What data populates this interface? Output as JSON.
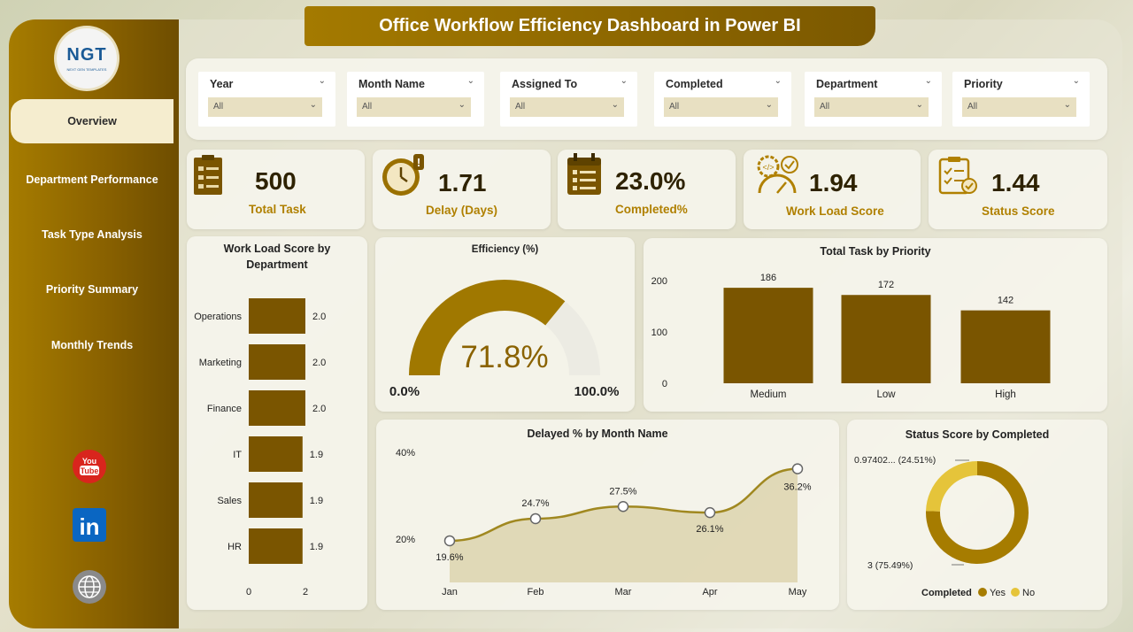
{
  "title": "Office Workflow Efficiency Dashboard in Power BI",
  "logo": {
    "text": "NGT",
    "subtext": "NEXT GEN TEMPLATES"
  },
  "nav": [
    "Overview",
    "Department Performance",
    "Task Type Analysis",
    "Priority Summary",
    "Monthly Trends"
  ],
  "social": [
    {
      "name": "youtube",
      "label": "You Tube",
      "color": "#d9251d"
    },
    {
      "name": "linkedin",
      "label": "in",
      "color": "#0a66c2"
    },
    {
      "name": "globe",
      "label": "",
      "color": "#777777"
    }
  ],
  "filters": [
    {
      "label": "Year",
      "value": "All"
    },
    {
      "label": "Month Name",
      "value": "All"
    },
    {
      "label": "Assigned To",
      "value": "All"
    },
    {
      "label": "Completed",
      "value": "All"
    },
    {
      "label": "Department",
      "value": "All"
    },
    {
      "label": "Priority",
      "value": "All"
    }
  ],
  "kpis": [
    {
      "value": "500",
      "label": "Total Task",
      "icon": "checklist-icon"
    },
    {
      "value": "1.71",
      "label": "Delay (Days)",
      "icon": "clock-alert-icon"
    },
    {
      "value": "23.0%",
      "label": "Completed%",
      "icon": "calendar-list-icon"
    },
    {
      "value": "1.94",
      "label": "Work Load Score",
      "icon": "gauge-gear-icon"
    },
    {
      "value": "1.44",
      "label": "Status Score",
      "icon": "clipboard-check-icon"
    }
  ],
  "accent": "#7a5500",
  "chart_data": [
    {
      "type": "bar",
      "orientation": "horizontal",
      "title": "Work Load Score by Department",
      "categories": [
        "Operations",
        "Marketing",
        "Finance",
        "IT",
        "Sales",
        "HR"
      ],
      "values": [
        2.0,
        2.0,
        2.0,
        1.9,
        1.9,
        1.9
      ],
      "value_labels": [
        "2.0",
        "2.0",
        "2.0",
        "1.9",
        "1.9",
        "1.9"
      ],
      "xlim": [
        0,
        2
      ],
      "xticks": [
        "0",
        "2"
      ],
      "color": "#7a5500"
    },
    {
      "type": "gauge",
      "title": "Efficiency (%)",
      "value": 71.8,
      "value_label": "71.8%",
      "min_label": "0.0%",
      "max_label": "100.0%",
      "color": "#a07800"
    },
    {
      "type": "bar",
      "title": "Total Task by Priority",
      "categories": [
        "Medium",
        "Low",
        "High"
      ],
      "values": [
        186,
        172,
        142
      ],
      "ylim": [
        0,
        200
      ],
      "yticks": [
        "0",
        "100",
        "200"
      ],
      "color": "#7a5500"
    },
    {
      "type": "area",
      "title": "Delayed % by Month Name",
      "categories": [
        "Jan",
        "Feb",
        "Mar",
        "Apr",
        "May"
      ],
      "values": [
        19.6,
        24.7,
        27.5,
        26.1,
        36.2
      ],
      "value_labels": [
        "19.6%",
        "24.7%",
        "27.5%",
        "26.1%",
        "36.2%"
      ],
      "yticks": [
        "20%",
        "40%"
      ],
      "ylim": [
        15,
        40
      ],
      "color": "#a08820"
    },
    {
      "type": "pie",
      "title": "Status Score by Completed",
      "slices": [
        {
          "name": "Yes",
          "value": 75.49,
          "label": "3 (75.49%)",
          "color": "#a67c00"
        },
        {
          "name": "No",
          "value": 24.51,
          "label": "0.97402... (24.51%)",
          "color": "#e5c43a"
        }
      ],
      "legend_title": "Completed",
      "legend": [
        "Yes",
        "No"
      ]
    }
  ]
}
